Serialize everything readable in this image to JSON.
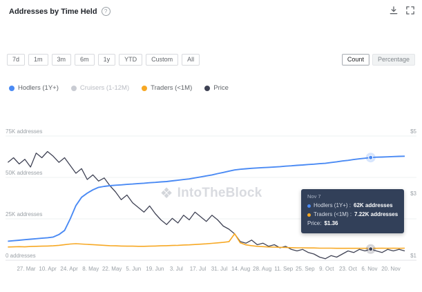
{
  "header": {
    "title": "Addresses by Time Held"
  },
  "icons": {
    "info": "?",
    "watermark_glyph": "❖"
  },
  "toolbar": {
    "ranges": [
      "7d",
      "1m",
      "3m",
      "6m",
      "1y",
      "YTD",
      "Custom",
      "All"
    ],
    "view_toggle": {
      "options": [
        "Count",
        "Percentage"
      ],
      "selected": "Count"
    }
  },
  "legend": [
    {
      "label": "Hodlers (1Y+)",
      "color": "#4a8af4",
      "disabled": false
    },
    {
      "label": "Cruisers (1-12M)",
      "color": "#c9ccd3",
      "disabled": true
    },
    {
      "label": "Traders (<1M)",
      "color": "#f7a823",
      "disabled": false
    },
    {
      "label": "Price",
      "color": "#3f4254",
      "disabled": false
    }
  ],
  "watermark": "IntoTheBlock",
  "tooltip": {
    "date": "Nov 7",
    "rows": [
      {
        "label": "Hodlers (1Y+) :",
        "value": "62K addresses",
        "color": "#4a8af4"
      },
      {
        "label": "Traders (<1M) :",
        "value": "7.22K addresses",
        "color": "#f7a823"
      }
    ],
    "price_row": {
      "label": "Price:",
      "value": "$1.36"
    }
  },
  "chart_data": {
    "type": "line",
    "title": "Addresses by Time Held",
    "x_start_day": -12,
    "x_step_days": 3.7,
    "x_tick_interval_days": 14,
    "x_tick_labels": [
      "27. Mar",
      "10. Apr",
      "24. Apr",
      "8. May",
      "22. May",
      "5. Jun",
      "19. Jun",
      "3. Jul",
      "17. Jul",
      "31. Jul",
      "14. Aug",
      "28. Aug",
      "11. Sep",
      "25. Sep",
      "9. Oct",
      "23. Oct",
      "6. Nov",
      "20. Nov"
    ],
    "y_left": {
      "unit": "addresses (thousands)",
      "min": 0,
      "max": 75,
      "ticks": [
        {
          "value": 75,
          "label": "75K addresses"
        },
        {
          "value": 50,
          "label": "50K addresses"
        },
        {
          "value": 25,
          "label": "25K addresses"
        },
        {
          "value": 0,
          "label": "0 addresses"
        }
      ]
    },
    "y_right": {
      "unit": "USD",
      "min": 1,
      "max": 5,
      "ticks": [
        {
          "value": 5,
          "label": "$5"
        },
        {
          "value": 3,
          "label": "$3"
        },
        {
          "value": 1,
          "label": "$1"
        }
      ]
    },
    "marker_index": 64,
    "markers": [
      "hodlers",
      "price"
    ],
    "series": [
      {
        "key": "price",
        "name": "Price",
        "color": "#3f4254",
        "axis": "right",
        "values": [
          4.15,
          4.3,
          4.1,
          4.25,
          4.0,
          4.45,
          4.3,
          4.5,
          4.35,
          4.15,
          4.3,
          4.05,
          3.8,
          3.95,
          3.6,
          3.75,
          3.55,
          3.65,
          3.4,
          3.2,
          2.95,
          3.1,
          2.85,
          2.7,
          2.55,
          2.75,
          2.5,
          2.3,
          2.15,
          2.35,
          2.2,
          2.45,
          2.3,
          2.55,
          2.4,
          2.25,
          2.45,
          2.3,
          2.1,
          2.0,
          1.85,
          1.6,
          1.55,
          1.65,
          1.5,
          1.55,
          1.45,
          1.5,
          1.4,
          1.45,
          1.35,
          1.3,
          1.35,
          1.25,
          1.2,
          1.1,
          1.05,
          1.15,
          1.1,
          1.2,
          1.3,
          1.25,
          1.35,
          1.3,
          1.36,
          1.3,
          1.25,
          1.35,
          1.3,
          1.35,
          1.3
        ]
      },
      {
        "key": "traders",
        "name": "Traders (<1M)",
        "color": "#f7a823",
        "axis": "left",
        "values": [
          8.0,
          8.1,
          8.2,
          8.1,
          8.3,
          8.4,
          8.5,
          8.6,
          8.7,
          9.0,
          9.4,
          9.8,
          10.0,
          9.8,
          9.6,
          9.4,
          9.2,
          9.0,
          8.8,
          8.7,
          8.6,
          8.5,
          8.5,
          8.4,
          8.4,
          8.5,
          8.6,
          8.7,
          8.8,
          8.9,
          9.0,
          9.2,
          9.3,
          9.5,
          9.7,
          9.9,
          10.2,
          10.5,
          10.8,
          11.2,
          16.0,
          10.5,
          9.3,
          8.8,
          8.4,
          8.2,
          8.0,
          7.9,
          7.8,
          7.7,
          7.6,
          7.5,
          7.5,
          7.4,
          7.4,
          7.3,
          7.3,
          7.3,
          7.2,
          7.2,
          7.2,
          7.2,
          7.2,
          7.2,
          7.22,
          7.2,
          7.3,
          7.2,
          7.3,
          7.2,
          7.3
        ]
      },
      {
        "key": "hodlers",
        "name": "Hodlers (1Y+)",
        "color": "#4a8af4",
        "axis": "left",
        "values": [
          11.5,
          11.8,
          12.1,
          12.4,
          12.7,
          13.0,
          13.3,
          13.6,
          14.0,
          15.5,
          18.0,
          25.0,
          33.0,
          38.0,
          40.5,
          42.5,
          44.0,
          44.6,
          45.0,
          45.3,
          45.5,
          45.8,
          46.0,
          46.3,
          46.5,
          46.8,
          47.0,
          47.3,
          47.5,
          47.9,
          48.3,
          48.7,
          49.1,
          49.7,
          50.3,
          50.9,
          51.5,
          52.3,
          53.0,
          53.8,
          54.5,
          54.9,
          55.2,
          55.5,
          55.7,
          55.9,
          56.1,
          56.3,
          56.5,
          56.8,
          57.0,
          57.3,
          57.5,
          57.8,
          58.0,
          58.3,
          58.5,
          59.0,
          59.4,
          59.9,
          60.3,
          60.8,
          61.2,
          61.6,
          62.0,
          62.2,
          62.3,
          62.4,
          62.6,
          62.7,
          62.8
        ]
      }
    ]
  }
}
